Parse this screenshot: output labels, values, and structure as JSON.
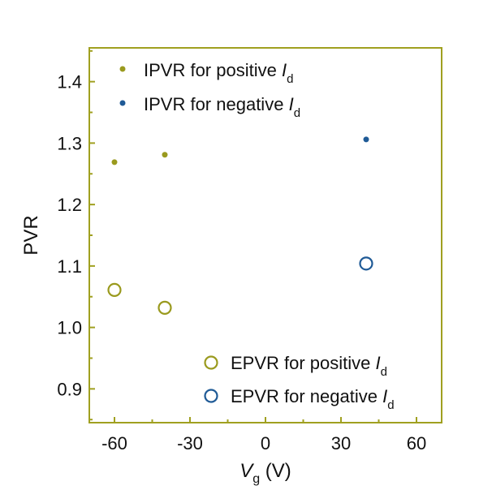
{
  "chart_data": {
    "type": "scatter",
    "xlabel": {
      "main": "V",
      "sub": "g",
      "unit": " (V)"
    },
    "ylabel": "PVR",
    "xlim": [
      -70,
      70
    ],
    "ylim": [
      0.845,
      1.455
    ],
    "x_ticks": [
      -60,
      -30,
      0,
      30,
      60
    ],
    "x_tick_labels": [
      "-60",
      "-30",
      "0",
      "30",
      "60"
    ],
    "y_ticks": [
      0.9,
      1.0,
      1.1,
      1.2,
      1.3,
      1.4
    ],
    "y_tick_labels": [
      "0.9",
      "1.0",
      "1.1",
      "1.2",
      "1.3",
      "1.4"
    ],
    "frame_color": "#a0a020",
    "legend_placement_top": "top-left",
    "legend_placement_bottom": "bottom-right",
    "series": [
      {
        "name": "IPVR for positive",
        "subscript_var": "I",
        "subscript": "d",
        "marker": "dot",
        "color": "#9a9a1e",
        "points": [
          [
            -60,
            1.269
          ],
          [
            -40,
            1.281
          ]
        ]
      },
      {
        "name": "IPVR for negative",
        "subscript_var": "I",
        "subscript": "d",
        "marker": "dot",
        "color": "#1f5a96",
        "points": [
          [
            40,
            1.306
          ]
        ]
      },
      {
        "name": "EPVR for positive",
        "subscript_var": "I",
        "subscript": "d",
        "marker": "circle",
        "color": "#9a9a1e",
        "points": [
          [
            -60,
            1.061
          ],
          [
            -40,
            1.032
          ]
        ]
      },
      {
        "name": "EPVR for negative",
        "subscript_var": "I",
        "subscript": "d",
        "marker": "circle",
        "color": "#1f5a96",
        "points": [
          [
            40,
            1.104
          ]
        ]
      }
    ]
  }
}
